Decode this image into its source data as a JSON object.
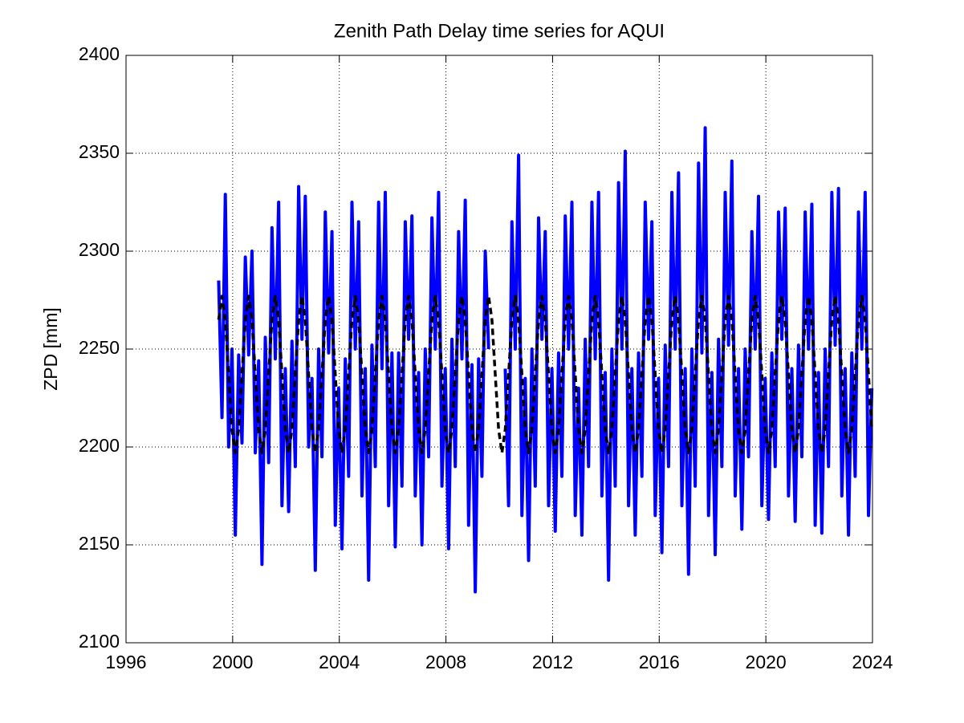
{
  "chart_data": {
    "type": "line",
    "title": "Zenith Path Delay time series for AQUI",
    "ylabel": "ZPD [mm]",
    "x": [
      1999.475,
      1999.6,
      1999.725,
      1999.85,
      1999.975,
      2000.1,
      2000.225,
      2000.35,
      2000.475,
      2000.6,
      2000.725,
      2000.85,
      2000.975,
      2001.1,
      2001.225,
      2001.35,
      2001.475,
      2001.6,
      2001.725,
      2001.85,
      2001.975,
      2002.1,
      2002.225,
      2002.35,
      2002.475,
      2002.6,
      2002.725,
      2002.85,
      2002.975,
      2003.1,
      2003.225,
      2003.35,
      2003.475,
      2003.6,
      2003.725,
      2003.85,
      2003.975,
      2004.1,
      2004.225,
      2004.35,
      2004.475,
      2004.6,
      2004.725,
      2004.85,
      2004.975,
      2005.1,
      2005.225,
      2005.35,
      2005.475,
      2005.6,
      2005.725,
      2005.85,
      2005.975,
      2006.1,
      2006.225,
      2006.35,
      2006.475,
      2006.6,
      2006.725,
      2006.85,
      2006.975,
      2007.1,
      2007.225,
      2007.35,
      2007.475,
      2007.6,
      2007.725,
      2007.85,
      2007.975,
      2008.1,
      2008.225,
      2008.35,
      2008.475,
      2008.6,
      2008.725,
      2008.85,
      2008.975,
      2009.1,
      2009.225,
      2009.35,
      2009.475,
      2009.6,
      2009.725,
      2009.85,
      2009.975,
      2010.1,
      2010.225,
      2010.35,
      2010.475,
      2010.6,
      2010.725,
      2010.85,
      2010.975,
      2011.1,
      2011.225,
      2011.35,
      2011.475,
      2011.6,
      2011.725,
      2011.85,
      2011.975,
      2012.1,
      2012.225,
      2012.35,
      2012.475,
      2012.6,
      2012.725,
      2012.85,
      2012.975,
      2013.1,
      2013.225,
      2013.35,
      2013.475,
      2013.6,
      2013.725,
      2013.85,
      2013.975,
      2014.1,
      2014.225,
      2014.35,
      2014.475,
      2014.6,
      2014.725,
      2014.85,
      2014.975,
      2015.1,
      2015.225,
      2015.35,
      2015.475,
      2015.6,
      2015.725,
      2015.85,
      2015.975,
      2016.1,
      2016.225,
      2016.35,
      2016.475,
      2016.6,
      2016.725,
      2016.85,
      2016.975,
      2017.1,
      2017.225,
      2017.35,
      2017.475,
      2017.6,
      2017.725,
      2017.85,
      2017.975,
      2018.1,
      2018.225,
      2018.35,
      2018.475,
      2018.6,
      2018.725,
      2018.85,
      2018.975,
      2019.1,
      2019.225,
      2019.35,
      2019.475,
      2019.6,
      2019.725,
      2019.85,
      2019.975,
      2020.1,
      2020.225,
      2020.35,
      2020.475,
      2020.6,
      2020.725,
      2020.85,
      2020.975,
      2021.1,
      2021.225,
      2021.35,
      2021.475,
      2021.6,
      2021.725,
      2021.85,
      2021.975,
      2022.1,
      2022.225,
      2022.35,
      2022.475,
      2022.6,
      2022.725,
      2022.85,
      2022.975,
      2023.1,
      2023.225,
      2023.35,
      2023.475,
      2023.6,
      2023.725,
      2023.85,
      2023.975
    ],
    "series": [
      {
        "color": "#0000ff",
        "line_style": "solid",
        "values": [
          2285,
          2215,
          2329,
          2200,
          2250,
          2155,
          2247,
          2202,
          2297,
          2247,
          2300,
          2197,
          2244,
          2140,
          2256,
          2192,
          2312,
          2245,
          2325,
          2170,
          2240,
          2167,
          2254,
          2190,
          2333,
          2255,
          2328,
          2200,
          2235,
          2137,
          2250,
          2195,
          2320,
          2248,
          2310,
          2160,
          2230,
          2148,
          2245,
          2185,
          2325,
          2250,
          2315,
          2175,
          2240,
          2132,
          2252,
          2190,
          2325,
          2240,
          2330,
          2170,
          2248,
          2149,
          2248,
          2180,
          2315,
          2255,
          2318,
          2175,
          2238,
          2150,
          2250,
          2195,
          2317,
          2250,
          2330,
          2180,
          2240,
          2148,
          2255,
          2190,
          2310,
          2245,
          2326,
          2160,
          2242,
          2126,
          2245,
          2185,
          2300,
          2250,
          null,
          null,
          null,
          null,
          2240,
          2170,
          2315,
          2250,
          2349,
          2165,
          2235,
          2142,
          2250,
          2180,
          2317,
          2255,
          2310,
          2170,
          2240,
          2157,
          2248,
          2185,
          2318,
          2250,
          2325,
          2165,
          2230,
          2155,
          2255,
          2190,
          2325,
          2245,
          2330,
          2175,
          2238,
          2132,
          2250,
          2180,
          2335,
          2250,
          2351,
          2170,
          2240,
          2155,
          2248,
          2185,
          2325,
          2255,
          2315,
          2165,
          2235,
          2146,
          2252,
          2190,
          2330,
          2250,
          2340,
          2170,
          2240,
          2135,
          2250,
          2180,
          2345,
          2248,
          2363,
          2165,
          2238,
          2145,
          2255,
          2190,
          2330,
          2252,
          2346,
          2175,
          2240,
          2158,
          2250,
          2195,
          2310,
          2250,
          2328,
          2170,
          2235,
          2163,
          2248,
          2190,
          2320,
          2255,
          2322,
          2175,
          2240,
          2162,
          2252,
          2195,
          2320,
          2250,
          2324,
          2160,
          2238,
          2156,
          2250,
          2190,
          2330,
          2252,
          2332,
          2175,
          2240,
          2155,
          2248,
          2185,
          2320,
          2250,
          2330,
          2165,
          2230
        ]
      },
      {
        "color": "#000000",
        "line_style": "dashed",
        "values": [
          2265,
          2277,
          2265,
          2237,
          2209,
          2197,
          2209,
          2237,
          2265,
          2277,
          2265,
          2237,
          2209,
          2197,
          2209,
          2237,
          2265,
          2277,
          2265,
          2237,
          2209,
          2197,
          2209,
          2237,
          2265,
          2277,
          2265,
          2237,
          2209,
          2197,
          2209,
          2237,
          2265,
          2277,
          2265,
          2237,
          2209,
          2197,
          2209,
          2237,
          2265,
          2277,
          2265,
          2237,
          2209,
          2197,
          2209,
          2237,
          2265,
          2277,
          2265,
          2237,
          2209,
          2197,
          2209,
          2237,
          2265,
          2277,
          2265,
          2237,
          2209,
          2197,
          2209,
          2237,
          2265,
          2277,
          2265,
          2237,
          2209,
          2197,
          2209,
          2237,
          2265,
          2277,
          2265,
          2237,
          2209,
          2197,
          2209,
          2237,
          2265,
          2277,
          2265,
          2237,
          2209,
          2197,
          2209,
          2237,
          2265,
          2277,
          2265,
          2237,
          2209,
          2197,
          2209,
          2237,
          2265,
          2277,
          2265,
          2237,
          2209,
          2197,
          2209,
          2237,
          2265,
          2277,
          2265,
          2237,
          2209,
          2197,
          2209,
          2237,
          2265,
          2277,
          2265,
          2237,
          2209,
          2197,
          2209,
          2237,
          2265,
          2277,
          2265,
          2237,
          2209,
          2197,
          2209,
          2237,
          2265,
          2277,
          2265,
          2237,
          2209,
          2197,
          2209,
          2237,
          2265,
          2277,
          2265,
          2237,
          2209,
          2197,
          2209,
          2237,
          2265,
          2277,
          2265,
          2237,
          2209,
          2197,
          2209,
          2237,
          2265,
          2277,
          2265,
          2237,
          2209,
          2197,
          2209,
          2237,
          2265,
          2277,
          2265,
          2237,
          2209,
          2197,
          2209,
          2237,
          2265,
          2277,
          2265,
          2237,
          2209,
          2197,
          2209,
          2237,
          2265,
          2277,
          2265,
          2237,
          2209,
          2197,
          2209,
          2237,
          2265,
          2277,
          2265,
          2237,
          2209,
          2197,
          2209,
          2237,
          2265,
          2277,
          2265,
          2237,
          2209
        ]
      }
    ],
    "xlim": [
      1996,
      2024
    ],
    "xticks": [
      1996,
      2000,
      2004,
      2008,
      2012,
      2016,
      2020,
      2024
    ],
    "ylim": [
      2100,
      2400
    ],
    "yticks": [
      2100,
      2150,
      2200,
      2250,
      2300,
      2350,
      2400
    ],
    "grid": true
  }
}
